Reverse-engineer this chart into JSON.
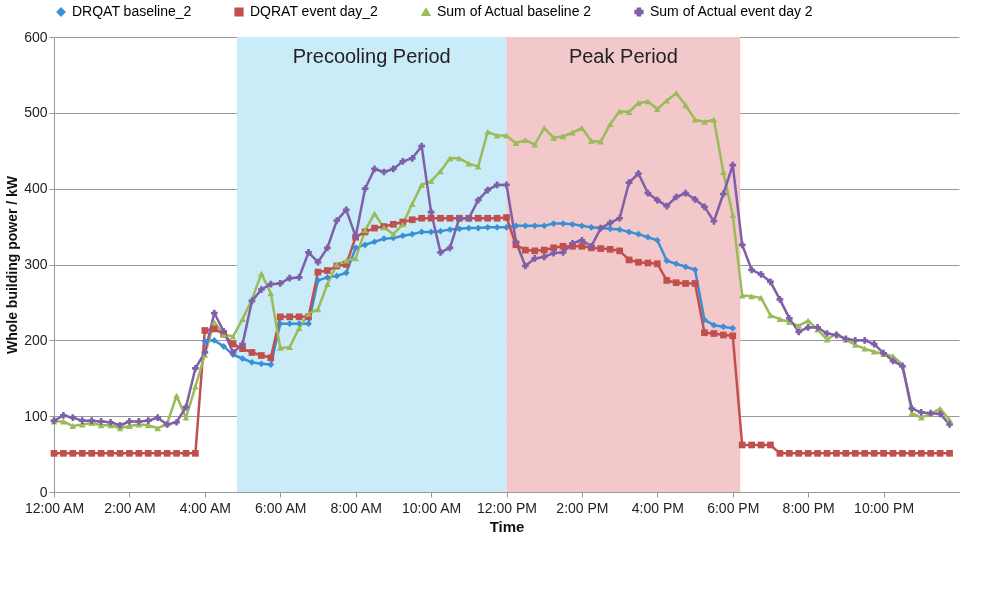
{
  "chart_data": {
    "type": "line",
    "xlabel": "Time",
    "ylabel": "Whole building power / kW",
    "xlim": [
      0,
      24
    ],
    "ylim": [
      0,
      600
    ],
    "yticks": [
      0,
      100,
      200,
      300,
      400,
      500,
      600
    ],
    "xticks": [
      {
        "value": 0,
        "label": "12:00 AM"
      },
      {
        "value": 2,
        "label": "2:00 AM"
      },
      {
        "value": 4,
        "label": "4:00 AM"
      },
      {
        "value": 6,
        "label": "6:00 AM"
      },
      {
        "value": 8,
        "label": "8:00 AM"
      },
      {
        "value": 10,
        "label": "10:00 AM"
      },
      {
        "value": 12,
        "label": "12:00 PM"
      },
      {
        "value": 14,
        "label": "2:00 PM"
      },
      {
        "value": 16,
        "label": "4:00 PM"
      },
      {
        "value": 18,
        "label": "6:00 PM"
      },
      {
        "value": 20,
        "label": "8:00 PM"
      },
      {
        "value": 22,
        "label": "10:00 PM"
      }
    ],
    "x": [
      0,
      0.25,
      0.5,
      0.75,
      1,
      1.25,
      1.5,
      1.75,
      2,
      2.25,
      2.5,
      2.75,
      3,
      3.25,
      3.5,
      3.75,
      4,
      4.25,
      4.5,
      4.75,
      5,
      5.25,
      5.5,
      5.75,
      6,
      6.25,
      6.5,
      6.75,
      7,
      7.25,
      7.5,
      7.75,
      8,
      8.25,
      8.5,
      8.75,
      9,
      9.25,
      9.5,
      9.75,
      10,
      10.25,
      10.5,
      10.75,
      11,
      11.25,
      11.5,
      11.75,
      12,
      12.25,
      12.5,
      12.75,
      13,
      13.25,
      13.5,
      13.75,
      14,
      14.25,
      14.5,
      14.75,
      15,
      15.25,
      15.5,
      15.75,
      16,
      16.25,
      16.5,
      16.75,
      17,
      17.25,
      17.5,
      17.75,
      18,
      18.25,
      18.5,
      18.75,
      19,
      19.25,
      19.5,
      19.75,
      20,
      20.25,
      20.5,
      20.75,
      21,
      21.25,
      21.5,
      21.75,
      22,
      22.25,
      22.5,
      22.75,
      23,
      23.25,
      23.5,
      23.75
    ],
    "series": [
      {
        "name": "DRQAT baseline_2",
        "color": "#3a8fd6",
        "marker": "diamond",
        "values": [
          null,
          null,
          null,
          null,
          null,
          null,
          null,
          null,
          null,
          null,
          null,
          null,
          null,
          null,
          null,
          null,
          199,
          200,
          192,
          181,
          176,
          171,
          169,
          168,
          222,
          222,
          222,
          222,
          279,
          283,
          285,
          289,
          322,
          326,
          330,
          334,
          335,
          338,
          340,
          343,
          343,
          344,
          346,
          347,
          348,
          348,
          349,
          349,
          349,
          351,
          351,
          351,
          351,
          354,
          354,
          353,
          351,
          349,
          348,
          347,
          346,
          343,
          340,
          336,
          332,
          305,
          301,
          297,
          293,
          227,
          220,
          218,
          216,
          null,
          null,
          null,
          null,
          null,
          null,
          null,
          null,
          null,
          null,
          null,
          null,
          null,
          null,
          null,
          null,
          null,
          null,
          null,
          null,
          null,
          null,
          null
        ]
      },
      {
        "name": "DQRAT event day_2",
        "color": "#c0504d",
        "marker": "square",
        "values": [
          51,
          51,
          51,
          51,
          51,
          51,
          51,
          51,
          51,
          51,
          51,
          51,
          51,
          51,
          51,
          51,
          213,
          215,
          208,
          195,
          189,
          184,
          180,
          177,
          231,
          231,
          231,
          231,
          290,
          292,
          298,
          300,
          336,
          343,
          348,
          350,
          353,
          356,
          359,
          361,
          361,
          361,
          361,
          361,
          361,
          361,
          361,
          361,
          362,
          326,
          319,
          318,
          319,
          322,
          324,
          324,
          324,
          322,
          321,
          320,
          318,
          306,
          303,
          302,
          301,
          279,
          276,
          275,
          275,
          210,
          209,
          207,
          206,
          62,
          62,
          62,
          62,
          51,
          51,
          51,
          51,
          51,
          51,
          51,
          51,
          51,
          51,
          51,
          51,
          51,
          51,
          51,
          51,
          51,
          51,
          51
        ]
      },
      {
        "name": "Sum of Actual baseline 2",
        "color": "#9bbb59",
        "marker": "triangle",
        "values": [
          93,
          93,
          87,
          89,
          91,
          88,
          88,
          84,
          87,
          89,
          88,
          84,
          90,
          127,
          98,
          139,
          181,
          224,
          208,
          205,
          228,
          254,
          288,
          262,
          190,
          191,
          216,
          235,
          241,
          274,
          300,
          305,
          308,
          345,
          367,
          349,
          340,
          353,
          380,
          405,
          410,
          423,
          440,
          440,
          433,
          429,
          475,
          470,
          470,
          460,
          464,
          458,
          480,
          467,
          469,
          474,
          480,
          463,
          462,
          485,
          502,
          501,
          513,
          515,
          505,
          516,
          526,
          510,
          491,
          488,
          491,
          422,
          365,
          259,
          258,
          256,
          233,
          228,
          224,
          219,
          226,
          214,
          201,
          209,
          201,
          194,
          189,
          185,
          182,
          179,
          168,
          104,
          98,
          103,
          110,
          95
        ]
      },
      {
        "name": "Sum of Actual event day 2",
        "color": "#7f5fa8",
        "marker": "cross",
        "values": [
          94,
          101,
          98,
          94,
          94,
          93,
          92,
          88,
          93,
          93,
          94,
          98,
          89,
          92,
          112,
          163,
          184,
          236,
          212,
          184,
          195,
          252,
          267,
          274,
          275,
          282,
          283,
          316,
          303,
          322,
          358,
          372,
          337,
          400,
          426,
          422,
          426,
          436,
          440,
          456,
          369,
          316,
          322,
          361,
          361,
          385,
          398,
          405,
          405,
          330,
          298,
          308,
          310,
          315,
          316,
          328,
          332,
          324,
          348,
          355,
          361,
          408,
          420,
          394,
          385,
          377,
          389,
          394,
          386,
          376,
          357,
          393,
          431,
          326,
          293,
          287,
          277,
          254,
          229,
          211,
          217,
          217,
          209,
          207,
          202,
          200,
          200,
          195,
          183,
          173,
          166,
          110,
          105,
          104,
          103,
          89
        ]
      }
    ],
    "bands": [
      {
        "axis": "x",
        "from": 4.85,
        "to": 12,
        "label": "Precooling Period",
        "color": "#c9ecf8"
      },
      {
        "axis": "x",
        "from": 12,
        "to": 18.2,
        "label": "Peak Period",
        "color": "#f2c8cb"
      }
    ],
    "grid": "y",
    "legend": "top",
    "line_style": "solid"
  }
}
